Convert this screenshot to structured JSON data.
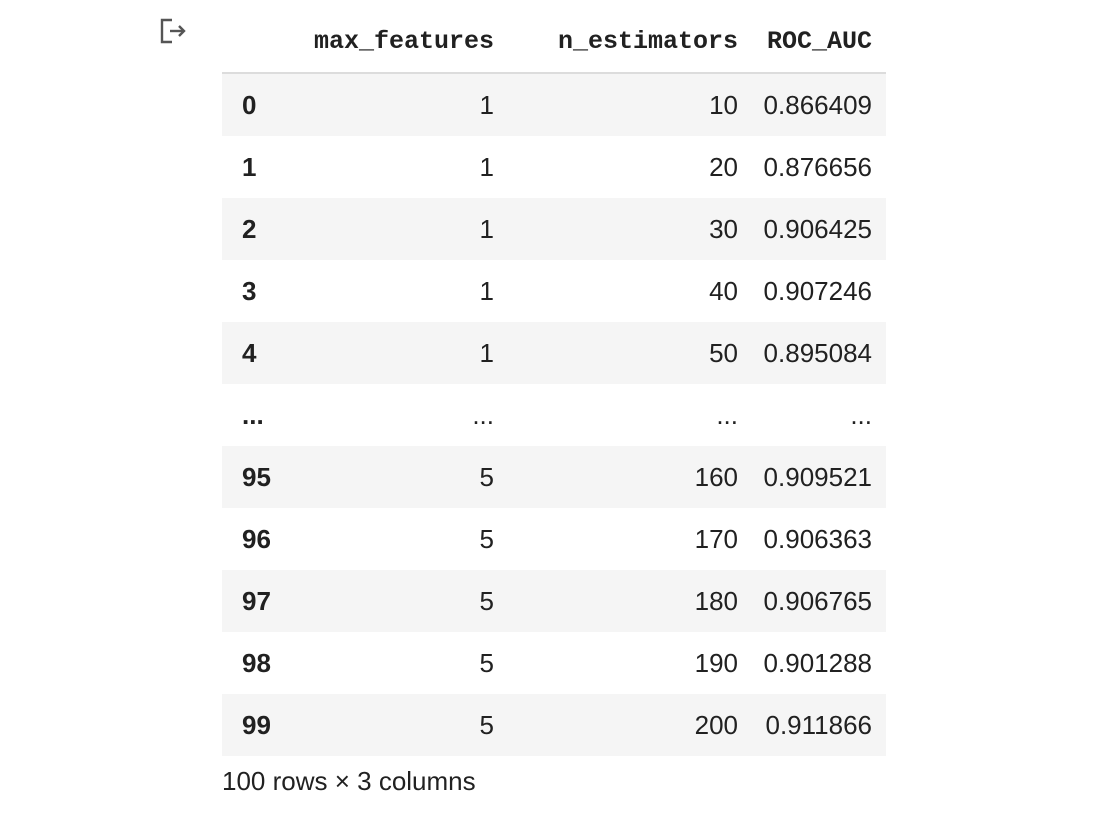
{
  "output_icon": "output-redirect-icon",
  "table": {
    "columns": [
      "",
      "max_features",
      "n_estimators",
      "ROC_AUC"
    ],
    "rows": [
      [
        "0",
        "1",
        "10",
        "0.866409"
      ],
      [
        "1",
        "1",
        "20",
        "0.876656"
      ],
      [
        "2",
        "1",
        "30",
        "0.906425"
      ],
      [
        "3",
        "1",
        "40",
        "0.907246"
      ],
      [
        "4",
        "1",
        "50",
        "0.895084"
      ],
      [
        "...",
        "...",
        "...",
        "..."
      ],
      [
        "95",
        "5",
        "160",
        "0.909521"
      ],
      [
        "96",
        "5",
        "170",
        "0.906363"
      ],
      [
        "97",
        "5",
        "180",
        "0.906765"
      ],
      [
        "98",
        "5",
        "190",
        "0.901288"
      ],
      [
        "99",
        "5",
        "200",
        "0.911866"
      ]
    ]
  },
  "shape_text": "100 rows × 3 columns",
  "colors": {
    "stripe": "#f5f5f5",
    "header_rule": "#dcdcdc",
    "text": "#212121"
  }
}
